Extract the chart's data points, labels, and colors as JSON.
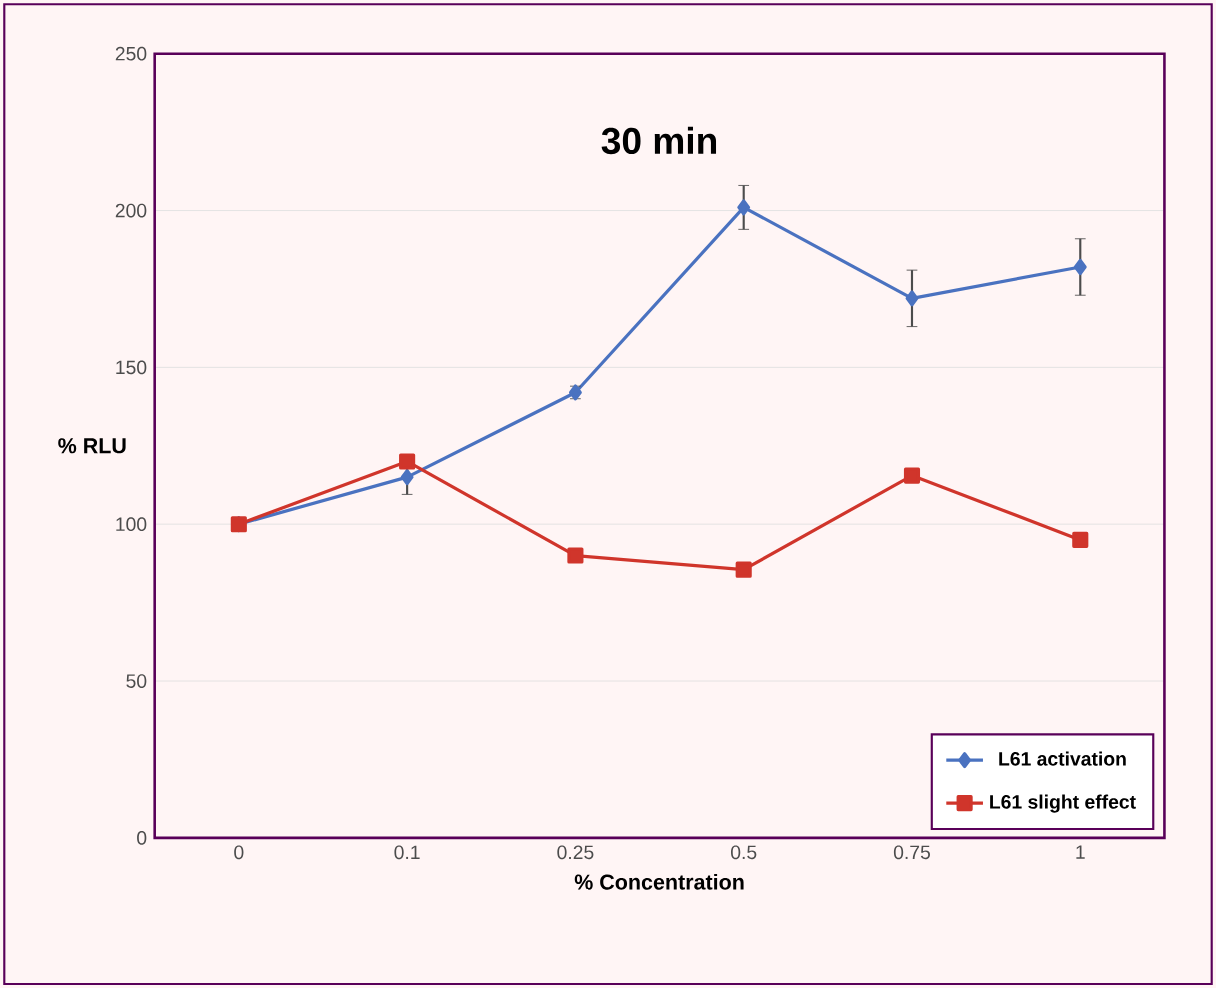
{
  "chart_data": {
    "type": "line",
    "title": "30 min",
    "xlabel": "% Concentration",
    "ylabel": "% RLU",
    "categories": [
      "0",
      "0.1",
      "0.25",
      "0.5",
      "0.75",
      "1"
    ],
    "series": [
      {
        "name": "L61 activation",
        "color": "#4a72c0",
        "marker": "diamond",
        "values": [
          100,
          115,
          142,
          201,
          172,
          182
        ],
        "errors": [
          null,
          5.5,
          2,
          7,
          9,
          9
        ]
      },
      {
        "name": "L61 slight effect",
        "color": "#d0352b",
        "marker": "square",
        "values": [
          100,
          120,
          90,
          85.5,
          115.5,
          95
        ]
      }
    ],
    "ylim": [
      0,
      250
    ],
    "yticks": [
      0,
      50,
      100,
      150,
      200,
      250
    ],
    "grid": "y",
    "legend": "bottom right"
  }
}
